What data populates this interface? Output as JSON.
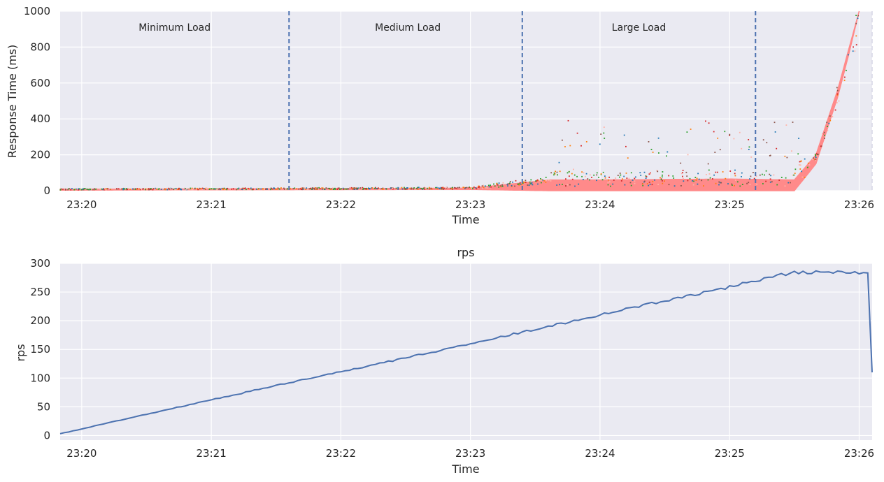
{
  "chart_data": [
    {
      "type": "scatter",
      "title": "",
      "xlabel": "Time",
      "ylabel": "Response Time (ms)",
      "xlim": [
        "23:19:50",
        "23:26:06"
      ],
      "ylim": [
        0,
        1000
      ],
      "x_ticks": [
        "23:20",
        "23:21",
        "23:22",
        "23:23",
        "23:24",
        "23:25",
        "23:26"
      ],
      "y_ticks": [
        0,
        200,
        400,
        600,
        800,
        1000
      ],
      "grid": true,
      "phase_boundaries": [
        "23:21:36",
        "23:23:24",
        "23:25:12"
      ],
      "phase_labels": [
        {
          "text": "Minimum Load",
          "x": "23:20:43"
        },
        {
          "text": "Medium Load",
          "x": "23:22:31"
        },
        {
          "text": "Large Load",
          "x": "23:24:18"
        }
      ],
      "response_time_envelope": {
        "x": [
          "23:19:50",
          "23:21:00",
          "23:22:00",
          "23:23:00",
          "23:23:37",
          "23:24:00",
          "23:25:00",
          "23:25:30",
          "23:25:40",
          "23:25:50",
          "23:25:55",
          "23:26:00"
        ],
        "low": [
          3,
          5,
          6,
          7,
          0,
          0,
          0,
          0,
          150,
          520,
          750,
          1000
        ],
        "high": [
          8,
          10,
          12,
          14,
          60,
          60,
          65,
          60,
          200,
          560,
          780,
          1000
        ]
      },
      "colors": {
        "background": "#EAEAF2",
        "band": "#FF8A8A",
        "boundary": "#4C72B0",
        "scatter": [
          "#d62728",
          "#2ca02c",
          "#ff7f0e",
          "#1f77b4",
          "#8c564b",
          "#ffb3a7"
        ]
      }
    },
    {
      "type": "line",
      "title": "rps",
      "xlabel": "Time",
      "ylabel": "rps",
      "xlim": [
        "23:19:50",
        "23:26:06"
      ],
      "ylim": [
        -8,
        300
      ],
      "x_ticks": [
        "23:20",
        "23:21",
        "23:22",
        "23:23",
        "23:24",
        "23:25",
        "23:26"
      ],
      "y_ticks": [
        0,
        50,
        100,
        150,
        200,
        250,
        300
      ],
      "grid": true,
      "series": [
        {
          "x": [
            "23:19:50",
            "23:20:30",
            "23:21:00",
            "23:21:30",
            "23:22:00",
            "23:22:30",
            "23:23:00",
            "23:23:30",
            "23:24:00",
            "23:24:30",
            "23:25:00",
            "23:25:20",
            "23:25:30",
            "23:25:50",
            "23:26:03",
            "23:26:05",
            "23:26:06"
          ],
          "values": [
            3,
            37,
            62,
            87,
            111,
            135,
            160,
            185,
            210,
            235,
            259,
            277,
            284,
            284,
            284,
            284,
            110
          ],
          "color": "#4C72B0"
        }
      ]
    }
  ]
}
